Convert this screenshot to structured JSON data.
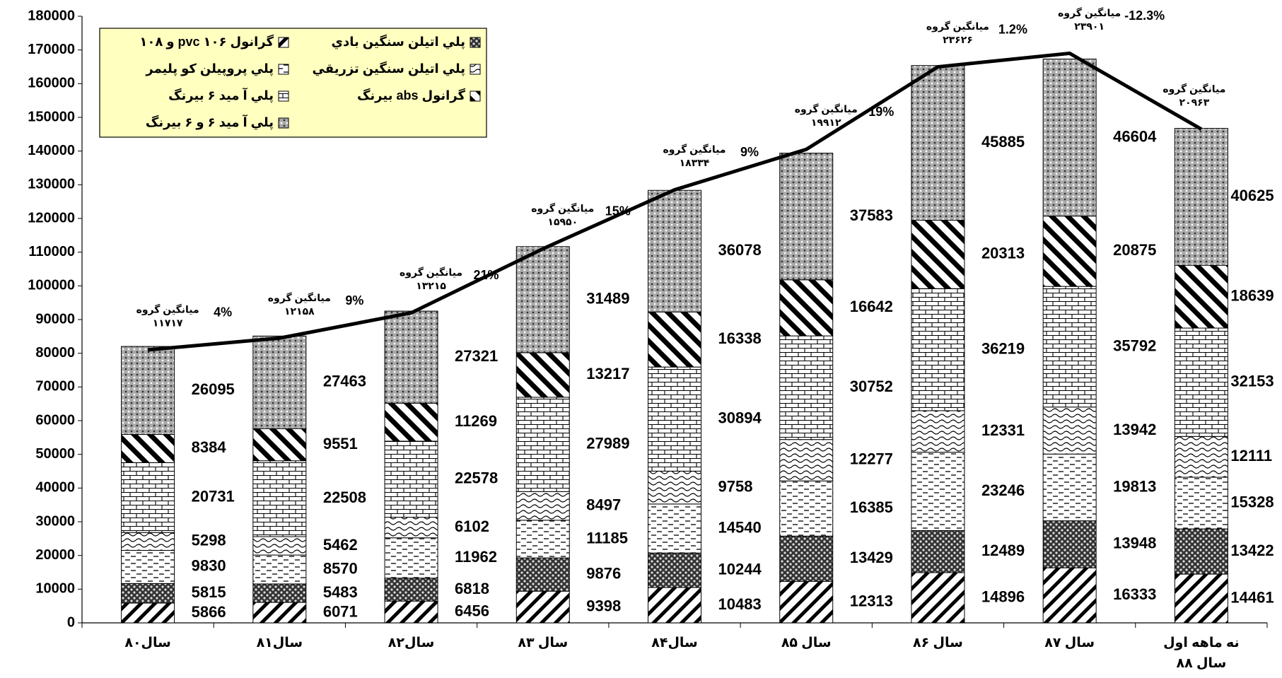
{
  "chart_data": {
    "type": "stacked_bar_line",
    "categories": [
      "سال۸۰",
      "سال۸۱",
      "سال۸۲",
      "سال ۸۳",
      "سال۸۴",
      "سال ۸۵",
      "سال ۸۶",
      "سال ۸۷",
      "نه ماهه اول سال ۸۸"
    ],
    "series": [
      {
        "name": "گرانول pvc ۱۰۶ و ۱۰۸",
        "color": "#000000",
        "pattern": "diagonal",
        "values": [
          5866,
          6071,
          6456,
          9398,
          10483,
          12313,
          14896,
          16333,
          14461
        ]
      },
      {
        "name": "پلي اتيلن سنگين بادي",
        "color": "#000000",
        "pattern": "dark-dots",
        "values": [
          5815,
          5483,
          6818,
          9876,
          10244,
          13429,
          12489,
          13948,
          13422
        ]
      },
      {
        "name": "پلي پروپيلن کو پليمر",
        "color": "#000000",
        "pattern": "dashes",
        "values": [
          9830,
          8570,
          11962,
          11185,
          14540,
          16385,
          23246,
          19813,
          15328
        ]
      },
      {
        "name": "پلي اتيلن سنگين تزريقي",
        "color": "#000000",
        "pattern": "waves",
        "values": [
          5298,
          5462,
          6102,
          8497,
          9758,
          12277,
          12331,
          13942,
          12111
        ]
      },
      {
        "name": "پلي آ ميد ۶ بيرنگ",
        "color": "#000000",
        "pattern": "bricks",
        "values": [
          20731,
          22508,
          22578,
          27989,
          30894,
          30752,
          36219,
          35792,
          32153
        ]
      },
      {
        "name": "گرانول abs بيرنگ",
        "color": "#000000",
        "pattern": "back-diagonal",
        "values": [
          8384,
          9551,
          11269,
          13217,
          16338,
          16642,
          20313,
          20875,
          18639
        ]
      },
      {
        "name": "پلي آ ميد ۶ و ۶ بيرنگ",
        "color": "#000000",
        "pattern": "light-dots",
        "values": [
          26095,
          27463,
          27321,
          31489,
          36078,
          37583,
          45885,
          46604,
          40625
        ]
      }
    ],
    "line": {
      "color": "#000000",
      "values": [
        81000,
        84500,
        92000,
        111000,
        128500,
        140500,
        165000,
        169000,
        146500
      ]
    },
    "line_annotations": [
      {
        "text": "ميانگين گروه",
        "label": "۱۱۷۱۷"
      },
      {
        "text": "ميانگين گروه",
        "label": "۱۲۱۵۸"
      },
      {
        "text": "ميانگين گروه",
        "label": "۱۳۲۱۵"
      },
      {
        "text": "ميانگين گروه",
        "label": "۱۵۹۵۰"
      },
      {
        "text": "ميانگين گروه",
        "label": "۱۸۳۳۴"
      },
      {
        "text": "ميانگين گروه",
        "label": "۱۹۹۱۲"
      },
      {
        "text": "ميانگين گروه",
        "label": "۲۳۶۲۶"
      },
      {
        "text": "ميانگين گروه",
        "label": "۲۳۹۰۱"
      },
      {
        "text": "ميانگين گروه",
        "label": "۲۰۹۶۳"
      }
    ],
    "growth_labels": [
      "4%",
      "9%",
      "21%",
      "15%",
      "9%",
      "19%",
      "1.2%",
      "-12.3%"
    ],
    "ylim": [
      0,
      180000
    ],
    "yticks": [
      0,
      10000,
      20000,
      30000,
      40000,
      50000,
      60000,
      70000,
      80000,
      90000,
      100000,
      110000,
      120000,
      130000,
      140000,
      150000,
      160000,
      170000,
      180000
    ],
    "legend": "top-left",
    "legend_color": "#ffffc0"
  }
}
